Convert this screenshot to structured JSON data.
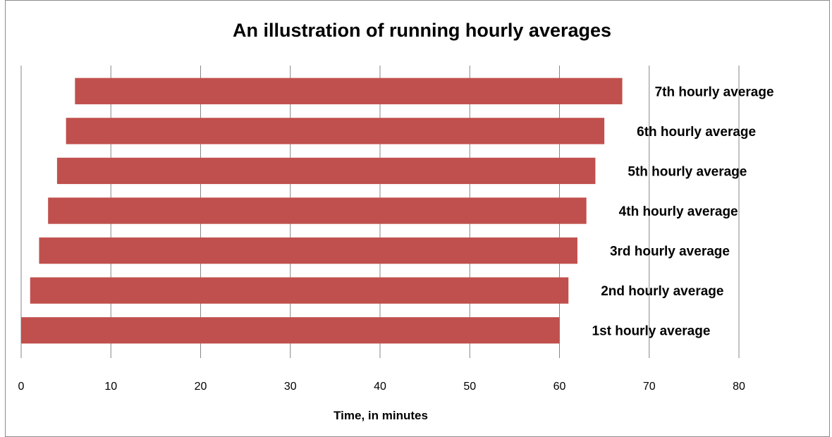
{
  "chart_data": {
    "type": "bar",
    "orientation": "horizontal",
    "title": "An illustration of running hourly averages",
    "xlabel": "Time, in minutes",
    "ylabel": "",
    "xlim": [
      0,
      80
    ],
    "x_ticks": [
      0,
      10,
      20,
      30,
      40,
      50,
      60,
      70,
      80
    ],
    "grid": "vertical",
    "bar_color": "#c0504d",
    "grid_color": "#868686",
    "categories": [
      "1st hourly average",
      "2nd hourly average",
      "3rd hourly average",
      "4th hourly average",
      "5th hourly average",
      "6th hourly average",
      "7th hourly average"
    ],
    "series": [
      {
        "start": [
          0,
          1,
          2,
          3,
          4,
          5,
          6
        ],
        "end": [
          60,
          61,
          62,
          63,
          64,
          65,
          67
        ]
      }
    ]
  }
}
